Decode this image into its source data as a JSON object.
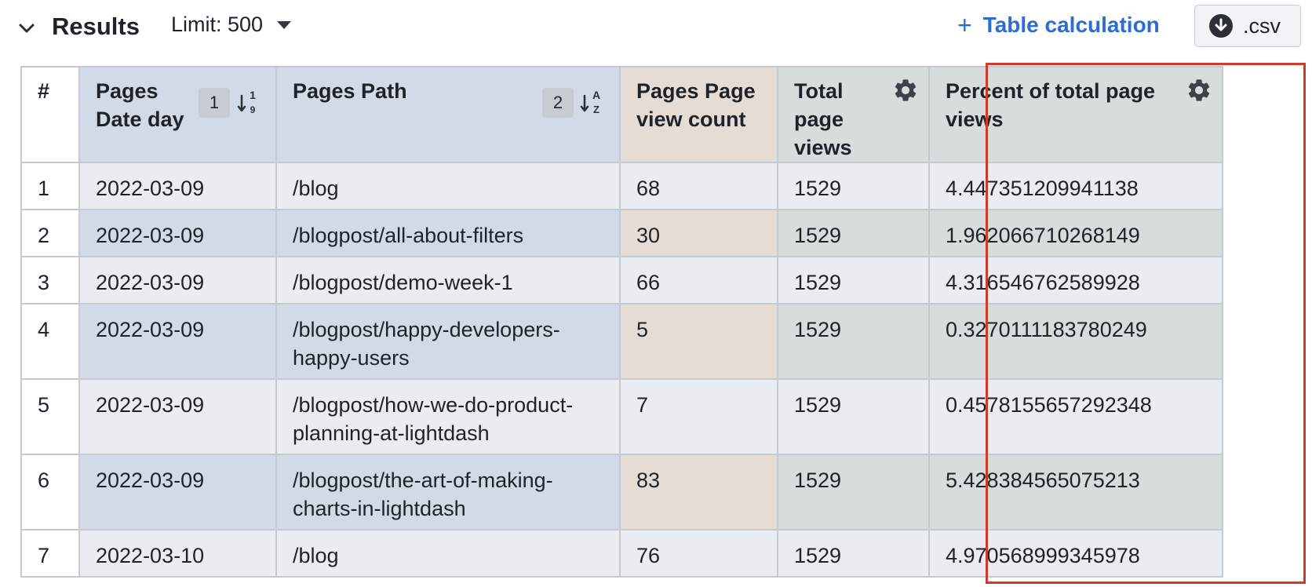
{
  "toolbar": {
    "title": "Results",
    "limit_label": "Limit: 500",
    "table_calc_label": "Table calculation",
    "csv_label": ".csv"
  },
  "table": {
    "headers": [
      {
        "label": "#"
      },
      {
        "label_line1": "Pages",
        "label_line2": "Date day",
        "sort_order": "1"
      },
      {
        "label": "Pages Path",
        "sort_order": "2"
      },
      {
        "label_line1": "Pages Page",
        "label_line2": "view count"
      },
      {
        "label_line1": "Total",
        "label_line2": "page",
        "label_line3": "views"
      },
      {
        "label_line1": "Percent of total page",
        "label_line2": "views"
      }
    ],
    "rows": [
      {
        "n": "1",
        "date": "2022-03-09",
        "path": "/blog",
        "path2": "",
        "count": "68",
        "total": "1529",
        "pct": "4.447351209941138"
      },
      {
        "n": "2",
        "date": "2022-03-09",
        "path": "/blogpost/all-about-filters",
        "path2": "",
        "count": "30",
        "total": "1529",
        "pct": "1.962066710268149"
      },
      {
        "n": "3",
        "date": "2022-03-09",
        "path": "/blogpost/demo-week-1",
        "path2": "",
        "count": "66",
        "total": "1529",
        "pct": "4.316546762589928"
      },
      {
        "n": "4",
        "date": "2022-03-09",
        "path": "/blogpost/happy-developers-",
        "path2": "happy-users",
        "count": "5",
        "total": "1529",
        "pct": "0.3270111183780249"
      },
      {
        "n": "5",
        "date": "2022-03-09",
        "path": "/blogpost/how-we-do-product-",
        "path2": "planning-at-lightdash",
        "count": "7",
        "total": "1529",
        "pct": "0.4578155657292348"
      },
      {
        "n": "6",
        "date": "2022-03-09",
        "path": "/blogpost/the-art-of-making-",
        "path2": "charts-in-lightdash",
        "count": "83",
        "total": "1529",
        "pct": "5.428384565075213"
      },
      {
        "n": "7",
        "date": "2022-03-10",
        "path": "/blog",
        "path2": "",
        "count": "76",
        "total": "1529",
        "pct": "4.970568999345978"
      }
    ]
  },
  "colors": {
    "dimension_header": "#d3dae7",
    "metric_header": "#e5dcd5",
    "calc_header": "#d6ddda",
    "accent_link": "#2d6cd2",
    "highlight_border": "#d03a2c"
  }
}
